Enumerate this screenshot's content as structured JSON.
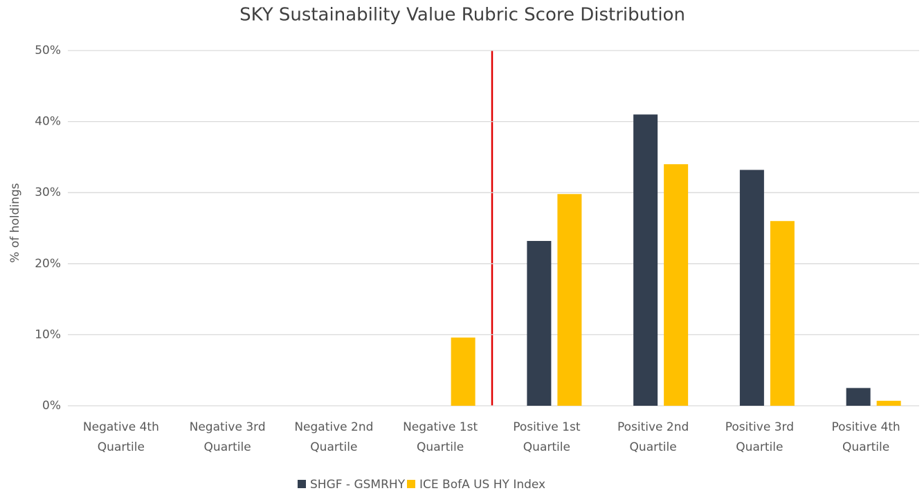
{
  "chart_data": {
    "type": "bar",
    "title": "SKY Sustainability Value Rubric Score Distribution",
    "y_label": "% of holdings",
    "categories": [
      "Negative 4th Quartile",
      "Negative 3rd Quartile",
      "Negative 2nd Quartile",
      "Negative 1st Quartile",
      "Positive 1st Quartile",
      "Positive 2nd Quartile",
      "Positive 3rd Quartile",
      "Positive 4th Quartile"
    ],
    "series": [
      {
        "name": "SHGF - GSMRHY",
        "color": "#333f50",
        "values": [
          0,
          0,
          0,
          0,
          23.2,
          41,
          33.2,
          2.5
        ]
      },
      {
        "name": "ICE BofA US HY Index",
        "color": "#ffc000",
        "values": [
          0,
          0,
          0,
          9.6,
          29.8,
          34,
          26,
          0.7
        ]
      }
    ],
    "ylim": [
      0,
      50
    ],
    "yticks": [
      {
        "value": 0,
        "label": "0%"
      },
      {
        "value": 10,
        "label": "10%"
      },
      {
        "value": 20,
        "label": "20%"
      },
      {
        "value": 30,
        "label": "30%"
      },
      {
        "value": 40,
        "label": "40%"
      },
      {
        "value": 50,
        "label": "50%"
      }
    ],
    "grid": true,
    "legend": "bottom"
  }
}
